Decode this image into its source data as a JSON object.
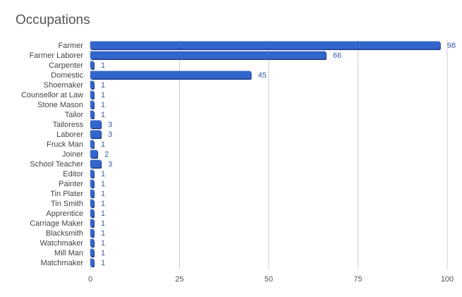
{
  "chart_data": {
    "type": "bar",
    "orientation": "horizontal",
    "title": "Occupations",
    "xlabel": "",
    "ylabel": "",
    "categories": [
      "Farmer",
      "Farmer Laborer",
      "Carpenter",
      "Domestic",
      "Shoemaker",
      "Counsellor at Law",
      "Stone Mason",
      "Tailor",
      "Tailoress",
      "Laborer",
      "Fruck Man",
      "Joiner",
      "School Teacher",
      "Editor",
      "Painter",
      "Tin Plater",
      "Tin Smith",
      "Apprentice",
      "Carriage Maker",
      "Blacksmith",
      "Watchmaker",
      "Mill Man",
      "Matchmaker"
    ],
    "values": [
      98,
      66,
      1,
      45,
      1,
      1,
      1,
      1,
      3,
      3,
      1,
      2,
      3,
      1,
      1,
      1,
      1,
      1,
      1,
      1,
      1,
      1,
      1
    ],
    "xlim": [
      0,
      100
    ],
    "xticks": [
      "0",
      "25",
      "50",
      "75",
      "100"
    ],
    "tick_values": [
      0,
      25,
      50,
      75,
      100
    ],
    "grid": true,
    "legend": "none",
    "colors": {
      "bar": "#3366cc",
      "bar_edge": "#1f3f8a",
      "data_label": "#3a5ca8",
      "category_label": "#444444",
      "tick_label": "#555555",
      "gridline": "#cccccc",
      "title": "#555555"
    }
  }
}
